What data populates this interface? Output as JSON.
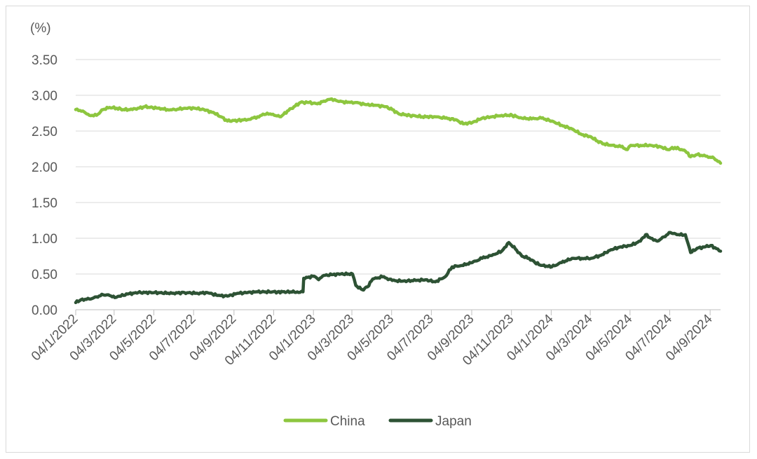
{
  "chart_data": {
    "type": "line",
    "ylabel": "(%)",
    "ylim": [
      0,
      3.5
    ],
    "yticks": [
      "0.00",
      "0.50",
      "1.00",
      "1.50",
      "2.00",
      "2.50",
      "3.00",
      "3.50"
    ],
    "xlim": [
      "2022-01-04",
      "2024-09-20"
    ],
    "xtick_labels": [
      "04/1/2022",
      "04/3/2022",
      "04/5/2022",
      "04/7/2022",
      "04/9/2022",
      "04/11/2022",
      "04/1/2023",
      "04/3/2023",
      "04/5/2023",
      "04/7/2023",
      "04/9/2023",
      "04/11/2023",
      "04/1/2024",
      "04/3/2024",
      "04/5/2024",
      "04/7/2024",
      "04/9/2024"
    ],
    "xtick_dates": [
      "2022-01-04",
      "2022-03-04",
      "2022-05-04",
      "2022-07-04",
      "2022-09-04",
      "2022-11-04",
      "2023-01-04",
      "2023-03-04",
      "2023-05-04",
      "2023-07-04",
      "2023-09-04",
      "2023-11-04",
      "2024-01-04",
      "2024-03-04",
      "2024-05-04",
      "2024-07-04",
      "2024-09-04"
    ],
    "grid": true,
    "legend_position": "bottom",
    "series": [
      {
        "name": "China",
        "color": "#8dc63f",
        "points": [
          [
            "2022-01-04",
            2.8
          ],
          [
            "2022-01-15",
            2.78
          ],
          [
            "2022-01-25",
            2.72
          ],
          [
            "2022-02-05",
            2.72
          ],
          [
            "2022-02-15",
            2.8
          ],
          [
            "2022-02-25",
            2.83
          ],
          [
            "2022-03-08",
            2.82
          ],
          [
            "2022-03-18",
            2.8
          ],
          [
            "2022-04-01",
            2.8
          ],
          [
            "2022-04-20",
            2.84
          ],
          [
            "2022-05-10",
            2.82
          ],
          [
            "2022-05-25",
            2.8
          ],
          [
            "2022-06-05",
            2.8
          ],
          [
            "2022-06-20",
            2.82
          ],
          [
            "2022-07-05",
            2.82
          ],
          [
            "2022-07-20",
            2.8
          ],
          [
            "2022-08-05",
            2.75
          ],
          [
            "2022-08-15",
            2.7
          ],
          [
            "2022-08-25",
            2.64
          ],
          [
            "2022-09-10",
            2.65
          ],
          [
            "2022-09-25",
            2.66
          ],
          [
            "2022-10-10",
            2.7
          ],
          [
            "2022-10-25",
            2.75
          ],
          [
            "2022-11-05",
            2.72
          ],
          [
            "2022-11-15",
            2.7
          ],
          [
            "2022-11-25",
            2.78
          ],
          [
            "2022-12-05",
            2.84
          ],
          [
            "2022-12-15",
            2.9
          ],
          [
            "2022-12-28",
            2.9
          ],
          [
            "2023-01-10",
            2.88
          ],
          [
            "2023-01-20",
            2.92
          ],
          [
            "2023-02-01",
            2.95
          ],
          [
            "2023-02-10",
            2.92
          ],
          [
            "2023-02-25",
            2.9
          ],
          [
            "2023-03-10",
            2.9
          ],
          [
            "2023-03-25",
            2.87
          ],
          [
            "2023-04-10",
            2.86
          ],
          [
            "2023-04-25",
            2.84
          ],
          [
            "2023-05-05",
            2.8
          ],
          [
            "2023-05-15",
            2.74
          ],
          [
            "2023-06-01",
            2.72
          ],
          [
            "2023-06-20",
            2.7
          ],
          [
            "2023-07-10",
            2.7
          ],
          [
            "2023-07-25",
            2.68
          ],
          [
            "2023-08-10",
            2.66
          ],
          [
            "2023-08-22",
            2.6
          ],
          [
            "2023-09-05",
            2.62
          ],
          [
            "2023-09-20",
            2.68
          ],
          [
            "2023-10-05",
            2.7
          ],
          [
            "2023-10-20",
            2.72
          ],
          [
            "2023-11-05",
            2.72
          ],
          [
            "2023-11-20",
            2.68
          ],
          [
            "2023-12-05",
            2.67
          ],
          [
            "2023-12-20",
            2.68
          ],
          [
            "2024-01-05",
            2.64
          ],
          [
            "2024-01-20",
            2.58
          ],
          [
            "2024-02-05",
            2.53
          ],
          [
            "2024-02-20",
            2.45
          ],
          [
            "2024-03-05",
            2.42
          ],
          [
            "2024-03-15",
            2.36
          ],
          [
            "2024-03-25",
            2.32
          ],
          [
            "2024-04-05",
            2.3
          ],
          [
            "2024-04-20",
            2.28
          ],
          [
            "2024-04-30",
            2.24
          ],
          [
            "2024-05-05",
            2.3
          ],
          [
            "2024-05-20",
            2.3
          ],
          [
            "2024-06-05",
            2.3
          ],
          [
            "2024-06-20",
            2.28
          ],
          [
            "2024-07-01",
            2.24
          ],
          [
            "2024-07-12",
            2.27
          ],
          [
            "2024-07-28",
            2.22
          ],
          [
            "2024-08-05",
            2.14
          ],
          [
            "2024-08-15",
            2.17
          ],
          [
            "2024-08-28",
            2.15
          ],
          [
            "2024-09-10",
            2.12
          ],
          [
            "2024-09-20",
            2.05
          ]
        ]
      },
      {
        "name": "Japan",
        "color": "#2d5234",
        "points": [
          [
            "2022-01-04",
            0.1
          ],
          [
            "2022-01-12",
            0.14
          ],
          [
            "2022-01-25",
            0.15
          ],
          [
            "2022-02-05",
            0.18
          ],
          [
            "2022-02-15",
            0.21
          ],
          [
            "2022-02-25",
            0.2
          ],
          [
            "2022-03-05",
            0.17
          ],
          [
            "2022-03-12",
            0.19
          ],
          [
            "2022-03-25",
            0.22
          ],
          [
            "2022-04-10",
            0.24
          ],
          [
            "2022-05-05",
            0.24
          ],
          [
            "2022-06-01",
            0.23
          ],
          [
            "2022-06-20",
            0.24
          ],
          [
            "2022-07-10",
            0.23
          ],
          [
            "2022-07-25",
            0.24
          ],
          [
            "2022-08-10",
            0.2
          ],
          [
            "2022-08-25",
            0.19
          ],
          [
            "2022-09-10",
            0.23
          ],
          [
            "2022-09-25",
            0.24
          ],
          [
            "2022-10-10",
            0.25
          ],
          [
            "2022-11-10",
            0.25
          ],
          [
            "2022-12-10",
            0.25
          ],
          [
            "2022-12-19",
            0.25
          ],
          [
            "2022-12-20",
            0.44
          ],
          [
            "2023-01-05",
            0.47
          ],
          [
            "2023-01-12",
            0.42
          ],
          [
            "2023-01-20",
            0.48
          ],
          [
            "2023-02-01",
            0.49
          ],
          [
            "2023-02-15",
            0.5
          ],
          [
            "2023-03-05",
            0.5
          ],
          [
            "2023-03-10",
            0.34
          ],
          [
            "2023-03-20",
            0.28
          ],
          [
            "2023-03-28",
            0.32
          ],
          [
            "2023-04-05",
            0.43
          ],
          [
            "2023-04-20",
            0.46
          ],
          [
            "2023-05-05",
            0.41
          ],
          [
            "2023-05-20",
            0.4
          ],
          [
            "2023-06-10",
            0.41
          ],
          [
            "2023-06-25",
            0.42
          ],
          [
            "2023-07-10",
            0.39
          ],
          [
            "2023-07-25",
            0.46
          ],
          [
            "2023-08-05",
            0.6
          ],
          [
            "2023-08-20",
            0.62
          ],
          [
            "2023-09-05",
            0.66
          ],
          [
            "2023-09-20",
            0.72
          ],
          [
            "2023-10-05",
            0.76
          ],
          [
            "2023-10-20",
            0.82
          ],
          [
            "2023-10-31",
            0.94
          ],
          [
            "2023-11-10",
            0.85
          ],
          [
            "2023-11-20",
            0.75
          ],
          [
            "2023-12-01",
            0.72
          ],
          [
            "2023-12-10",
            0.66
          ],
          [
            "2023-12-20",
            0.62
          ],
          [
            "2024-01-05",
            0.6
          ],
          [
            "2024-01-20",
            0.66
          ],
          [
            "2024-02-05",
            0.72
          ],
          [
            "2024-02-20",
            0.72
          ],
          [
            "2024-03-05",
            0.72
          ],
          [
            "2024-03-20",
            0.76
          ],
          [
            "2024-04-05",
            0.84
          ],
          [
            "2024-04-20",
            0.88
          ],
          [
            "2024-05-05",
            0.9
          ],
          [
            "2024-05-20",
            0.96
          ],
          [
            "2024-05-28",
            1.05
          ],
          [
            "2024-06-05",
            1.0
          ],
          [
            "2024-06-15",
            0.96
          ],
          [
            "2024-06-25",
            1.02
          ],
          [
            "2024-07-05",
            1.08
          ],
          [
            "2024-07-15",
            1.05
          ],
          [
            "2024-07-28",
            1.05
          ],
          [
            "2024-08-05",
            0.8
          ],
          [
            "2024-08-15",
            0.86
          ],
          [
            "2024-08-28",
            0.88
          ],
          [
            "2024-09-05",
            0.9
          ],
          [
            "2024-09-20",
            0.82
          ]
        ]
      }
    ]
  }
}
